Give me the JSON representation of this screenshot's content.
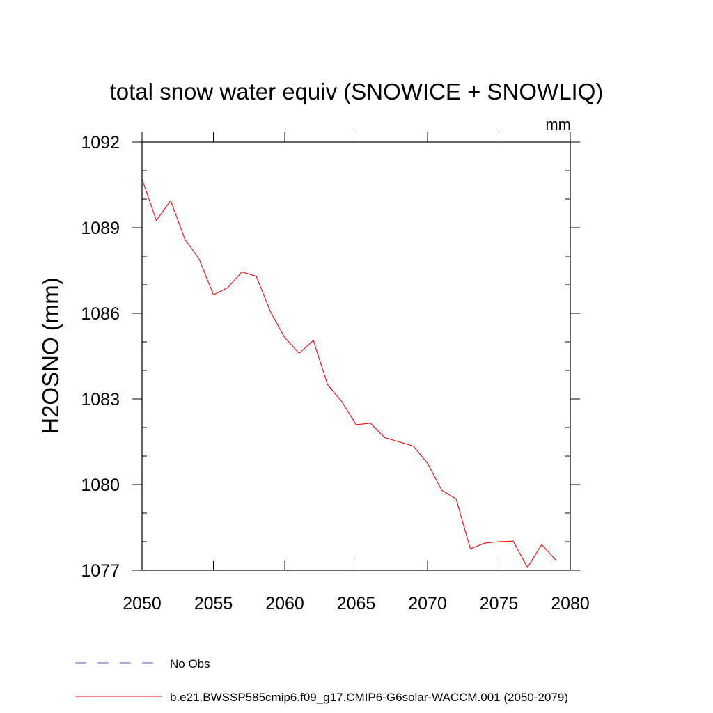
{
  "chart_data": {
    "type": "line",
    "title": "total snow water equiv (SNOWICE + SNOWLIQ)",
    "units_label": "mm",
    "xlabel": "",
    "ylabel": "H2OSNO  (mm)",
    "xlim": [
      2050,
      2080
    ],
    "ylim": [
      1077,
      1092
    ],
    "x_ticks": [
      2050,
      2055,
      2060,
      2065,
      2070,
      2075,
      2080
    ],
    "y_ticks": [
      1077,
      1080,
      1083,
      1086,
      1089,
      1092
    ],
    "grid": false,
    "x": [
      2050,
      2051,
      2052,
      2053,
      2054,
      2055,
      2056,
      2057,
      2058,
      2059,
      2060,
      2061,
      2062,
      2063,
      2064,
      2065,
      2066,
      2067,
      2068,
      2069,
      2070,
      2071,
      2072,
      2073,
      2074,
      2075,
      2076,
      2077,
      2078,
      2079
    ],
    "series": [
      {
        "name": "b.e21.BWSSP585cmip6.f09_g17.CMIP6-G6solar-WACCM.001 (2050-2079)",
        "color": "#ff0000",
        "style": "solid",
        "values": [
          1090.7,
          1089.25,
          1089.95,
          1088.6,
          1087.9,
          1086.65,
          1086.9,
          1087.45,
          1087.3,
          1086.05,
          1085.15,
          1084.6,
          1085.05,
          1083.5,
          1082.9,
          1082.1,
          1082.15,
          1081.65,
          1081.5,
          1081.35,
          1080.75,
          1079.8,
          1079.5,
          1077.75,
          1077.95,
          1078.0,
          1078.02,
          1077.1,
          1077.9,
          1077.35
        ]
      }
    ],
    "legend": [
      {
        "label": "No Obs",
        "color": "#5a4fa8",
        "style": "dashed"
      },
      {
        "label": "b.e21.BWSSP585cmip6.f09_g17.CMIP6-G6solar-WACCM.001 (2050-2079)",
        "color": "#ff0000",
        "style": "solid"
      }
    ],
    "legend_position": "bottom-left"
  }
}
